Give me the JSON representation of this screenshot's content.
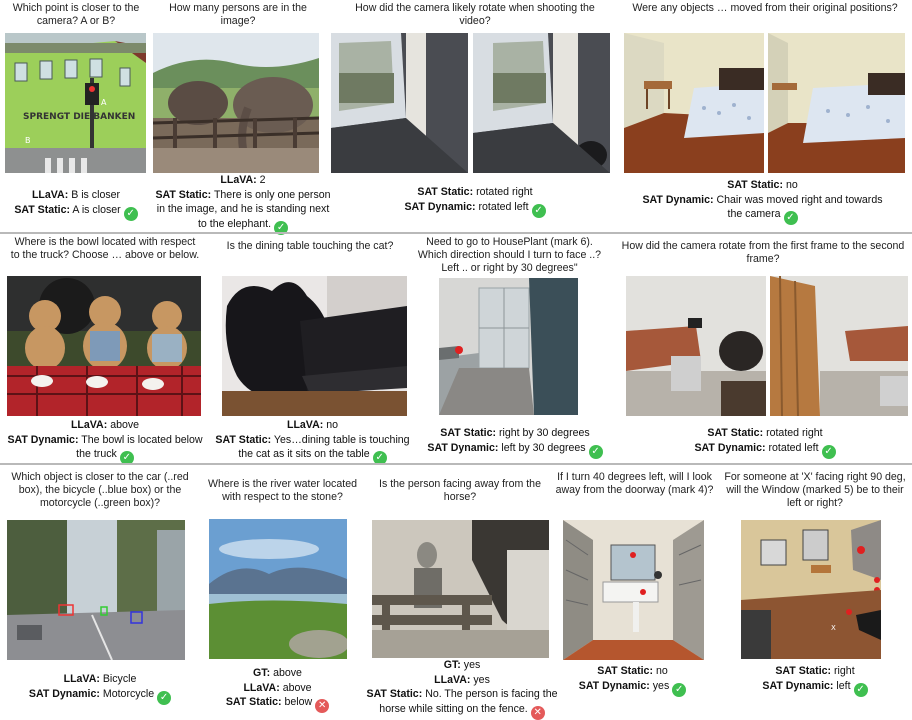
{
  "panels": [
    {
      "id": "p1",
      "question": "Which point is closer to the camera? A or B?",
      "answers": [
        {
          "label": "LLaVA:",
          "text": "B is closer",
          "mark": ""
        },
        {
          "label": "SAT Static:",
          "text": "A is closer",
          "mark": "check"
        }
      ]
    },
    {
      "id": "p2",
      "question": "How many persons are in the image?",
      "answers": [
        {
          "label": "LLaVA:",
          "text": "2",
          "mark": ""
        },
        {
          "label": "SAT Static:",
          "text": "There is only one person in the image, and he is standing next to the elephant.",
          "mark": "check"
        }
      ]
    },
    {
      "id": "p3",
      "question": "How did the camera likely rotate when shooting the video?",
      "answers": [
        {
          "label": "SAT Static:",
          "text": "rotated right",
          "mark": ""
        },
        {
          "label": "SAT Dynamic:",
          "text": "rotated left",
          "mark": "check"
        }
      ]
    },
    {
      "id": "p4",
      "question": "Were any objects … moved from their original positions?",
      "answers": [
        {
          "label": "SAT Static:",
          "text": "no",
          "mark": ""
        },
        {
          "label": "SAT Dynamic:",
          "text": "Chair was moved right and towards the camera",
          "mark": "check"
        }
      ]
    },
    {
      "id": "p5",
      "question": "Where is the bowl located with respect to the truck? Choose … above or below.",
      "answers": [
        {
          "label": "LLaVA:",
          "text": "above",
          "mark": ""
        },
        {
          "label": "SAT Dynamic:",
          "text": "The bowl is located below the truck",
          "mark": "check"
        }
      ]
    },
    {
      "id": "p6",
      "question": "Is the dining table touching the cat?",
      "answers": [
        {
          "label": "LLaVA:",
          "text": "no",
          "mark": ""
        },
        {
          "label": "SAT Static:",
          "text": "Yes…dining table is touching the cat as it sits on the table",
          "mark": "check"
        }
      ]
    },
    {
      "id": "p7",
      "question": "Need to go to HousePlant (mark 6). Which direction should I turn to face ..? Left .. or right by 30 degrees\"",
      "answers": [
        {
          "label": "SAT Static:",
          "text": "right by 30 degrees",
          "mark": ""
        },
        {
          "label": "SAT Dynamic:",
          "text": "left by 30 degrees",
          "mark": "check"
        }
      ]
    },
    {
      "id": "p8",
      "question": "How did the camera rotate from the first frame to the second frame?",
      "answers": [
        {
          "label": "SAT Static:",
          "text": "rotated right",
          "mark": ""
        },
        {
          "label": "SAT Dynamic:",
          "text": "rotated left",
          "mark": "check"
        }
      ]
    },
    {
      "id": "p9",
      "question": "Which object is closer to the car (..red box), the bicycle (..blue box) or the motorcycle (..green box)?",
      "answers": [
        {
          "label": "LLaVA:",
          "text": "Bicycle",
          "mark": ""
        },
        {
          "label": "SAT Dynamic:",
          "text": "Motorcycle",
          "mark": "check"
        }
      ]
    },
    {
      "id": "p10",
      "question": "Where is the river water located with respect to the stone?",
      "answers": [
        {
          "label": "GT:",
          "text": "above",
          "mark": ""
        },
        {
          "label": "LLaVA:",
          "text": "above",
          "mark": ""
        },
        {
          "label": "SAT Static:",
          "text": "below",
          "mark": "cross"
        }
      ]
    },
    {
      "id": "p11",
      "question": "Is the person facing away from the horse?",
      "answers": [
        {
          "label": "GT:",
          "text": "yes",
          "mark": ""
        },
        {
          "label": "LLaVA:",
          "text": "yes",
          "mark": ""
        },
        {
          "label": "SAT Static:",
          "text": "No. The person is facing the horse while sitting on the fence.",
          "mark": "cross"
        }
      ]
    },
    {
      "id": "p12",
      "question": "If I turn 40 degrees left, will I look away from the doorway (mark 4)?",
      "answers": [
        {
          "label": "SAT Static:",
          "text": "no",
          "mark": ""
        },
        {
          "label": "SAT Dynamic:",
          "text": "yes",
          "mark": "check"
        }
      ]
    },
    {
      "id": "p13",
      "question": "For someone at 'X' facing right 90 deg, will the Window (marked 5) be to their left or right?",
      "answers": [
        {
          "label": "SAT Static:",
          "text": "right",
          "mark": ""
        },
        {
          "label": "SAT Dynamic:",
          "text": "left",
          "mark": "check"
        }
      ]
    }
  ],
  "image_labels": {
    "graffiti": "SPRENGT DIE BANKEN",
    "point_a": "A",
    "point_b": "B",
    "mark_x": "X"
  },
  "icons": {
    "check": "check-icon",
    "cross": "cross-icon"
  },
  "colors": {
    "check": "#3fbf50",
    "cross": "#e45a5a",
    "separator": "#b9b9b9"
  }
}
